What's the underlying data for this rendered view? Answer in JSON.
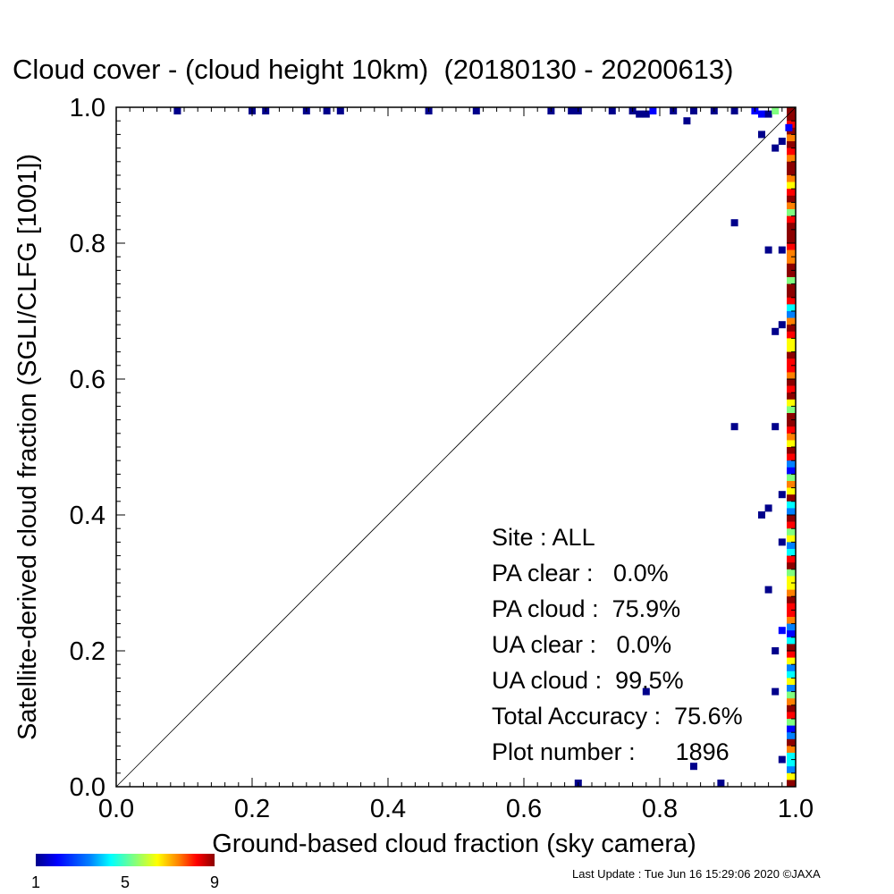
{
  "chart_data": {
    "type": "heatmap",
    "title": "Cloud cover - (cloud height 10km)  (20180130 - 20200613)",
    "xlabel": "Ground-based cloud fraction (sky camera)",
    "ylabel": "Satellite-derived cloud fraction (SGLI/CLFG [1001])",
    "xlim": [
      0.0,
      1.0
    ],
    "ylim": [
      0.0,
      1.0
    ],
    "x_ticks": [
      "0.0",
      "0.2",
      "0.4",
      "0.6",
      "0.8",
      "1.0"
    ],
    "y_ticks": [
      "0.0",
      "0.2",
      "0.4",
      "0.6",
      "0.8",
      "1.0"
    ],
    "reference_line": "y = x",
    "colorbar": {
      "min": 1,
      "max": 9,
      "ticks": [
        "1",
        "5",
        "9"
      ],
      "colors": [
        "#00008b",
        "#0000ff",
        "#0080ff",
        "#00ffff",
        "#80ff80",
        "#ffff00",
        "#ff8000",
        "#ff0000",
        "#8b0000"
      ]
    },
    "points": [
      {
        "x": 0.09,
        "y": 1.0,
        "count": 1
      },
      {
        "x": 0.2,
        "y": 1.0,
        "count": 1
      },
      {
        "x": 0.22,
        "y": 1.0,
        "count": 1
      },
      {
        "x": 0.28,
        "y": 1.0,
        "count": 1
      },
      {
        "x": 0.31,
        "y": 1.0,
        "count": 1
      },
      {
        "x": 0.33,
        "y": 1.0,
        "count": 1
      },
      {
        "x": 0.46,
        "y": 1.0,
        "count": 1
      },
      {
        "x": 0.53,
        "y": 1.0,
        "count": 1
      },
      {
        "x": 0.64,
        "y": 1.0,
        "count": 1
      },
      {
        "x": 0.67,
        "y": 1.0,
        "count": 1
      },
      {
        "x": 0.68,
        "y": 1.0,
        "count": 1
      },
      {
        "x": 0.73,
        "y": 1.0,
        "count": 1
      },
      {
        "x": 0.76,
        "y": 1.0,
        "count": 1
      },
      {
        "x": 0.77,
        "y": 0.99,
        "count": 1
      },
      {
        "x": 0.78,
        "y": 0.99,
        "count": 1
      },
      {
        "x": 0.79,
        "y": 1.0,
        "count": 2
      },
      {
        "x": 0.82,
        "y": 1.0,
        "count": 1
      },
      {
        "x": 0.85,
        "y": 1.0,
        "count": 1
      },
      {
        "x": 0.88,
        "y": 1.0,
        "count": 1
      },
      {
        "x": 0.91,
        "y": 1.0,
        "count": 1
      },
      {
        "x": 0.94,
        "y": 1.0,
        "count": 2
      },
      {
        "x": 0.95,
        "y": 0.99,
        "count": 2
      },
      {
        "x": 0.96,
        "y": 0.99,
        "count": 1
      },
      {
        "x": 0.97,
        "y": 1.0,
        "count": 5
      },
      {
        "x": 0.84,
        "y": 0.98,
        "count": 1
      },
      {
        "x": 0.95,
        "y": 0.96,
        "count": 1
      },
      {
        "x": 0.98,
        "y": 0.95,
        "count": 1
      },
      {
        "x": 0.97,
        "y": 0.94,
        "count": 1
      },
      {
        "x": 0.99,
        "y": 0.97,
        "count": 2
      },
      {
        "x": 0.91,
        "y": 0.83,
        "count": 1
      },
      {
        "x": 0.96,
        "y": 0.79,
        "count": 1
      },
      {
        "x": 0.98,
        "y": 0.79,
        "count": 1
      },
      {
        "x": 0.97,
        "y": 0.67,
        "count": 1
      },
      {
        "x": 0.98,
        "y": 0.68,
        "count": 1
      },
      {
        "x": 0.91,
        "y": 0.53,
        "count": 1
      },
      {
        "x": 0.97,
        "y": 0.53,
        "count": 1
      },
      {
        "x": 0.98,
        "y": 0.43,
        "count": 1
      },
      {
        "x": 0.96,
        "y": 0.41,
        "count": 1
      },
      {
        "x": 0.95,
        "y": 0.4,
        "count": 1
      },
      {
        "x": 0.98,
        "y": 0.36,
        "count": 1
      },
      {
        "x": 0.96,
        "y": 0.29,
        "count": 1
      },
      {
        "x": 0.97,
        "y": 0.2,
        "count": 1
      },
      {
        "x": 0.98,
        "y": 0.23,
        "count": 2
      },
      {
        "x": 0.97,
        "y": 0.14,
        "count": 1
      },
      {
        "x": 0.78,
        "y": 0.14,
        "count": 1
      },
      {
        "x": 0.98,
        "y": 0.04,
        "count": 1
      },
      {
        "x": 0.85,
        "y": 0.03,
        "count": 1
      },
      {
        "x": 0.89,
        "y": 0.0,
        "count": 1
      },
      {
        "x": 0.68,
        "y": 0.0,
        "count": 1
      }
    ],
    "x1_column_counts": [
      9,
      9,
      8,
      9,
      7,
      9,
      8,
      7,
      9,
      9,
      7,
      6,
      8,
      9,
      7,
      5,
      8,
      9,
      9,
      9,
      8,
      7,
      7,
      9,
      9,
      5,
      9,
      9,
      8,
      4,
      3,
      7,
      9,
      8,
      6,
      6,
      9,
      8,
      8,
      7,
      9,
      8,
      9,
      6,
      5,
      9,
      9,
      8,
      7,
      6,
      9,
      8,
      3,
      2,
      5,
      7,
      6,
      9,
      4,
      3,
      9,
      8,
      5,
      6,
      3,
      4,
      8,
      9,
      5,
      6,
      6,
      7,
      9,
      8,
      8,
      7,
      3,
      2,
      4,
      9,
      8,
      6,
      3,
      4,
      6,
      3,
      5,
      7,
      9,
      8,
      5,
      2,
      3,
      9,
      7,
      4,
      4,
      3,
      6,
      9
    ]
  },
  "stats": {
    "site": "Site : ALL",
    "pa_clear": "PA clear :   0.0%",
    "pa_cloud": "PA cloud :  75.9%",
    "ua_clear": "UA clear :   0.0%",
    "ua_cloud": "UA cloud :  99.5%",
    "total_accuracy": "Total Accuracy :  75.6%",
    "plot_number": "Plot number :      1896"
  },
  "footer": "Last Update : Tue Jun 16 15:29:06 2020  ©JAXA"
}
